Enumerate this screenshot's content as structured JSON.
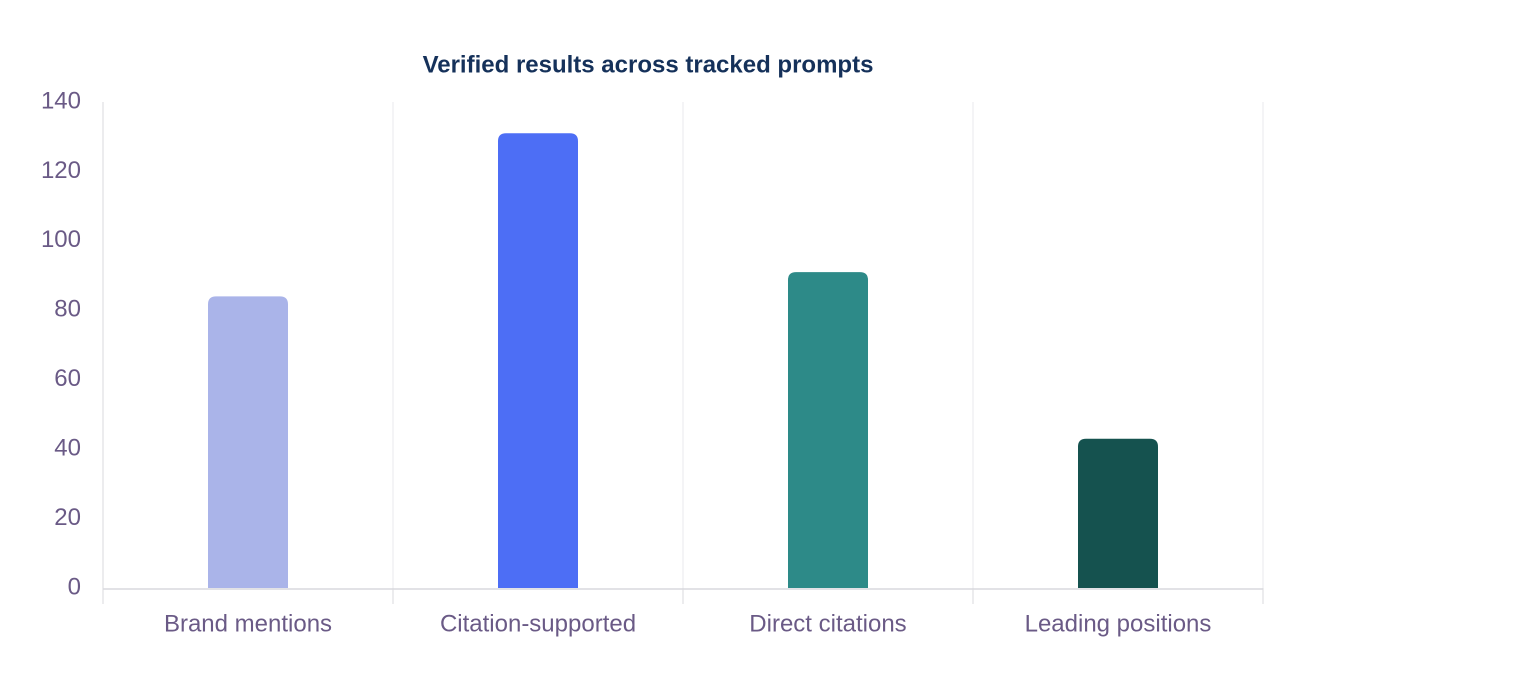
{
  "chart_data": {
    "type": "bar",
    "title": "Verified results across tracked prompts",
    "categories": [
      "Brand mentions",
      "Citation-supported",
      "Direct citations",
      "Leading positions"
    ],
    "values": [
      84,
      131,
      91,
      43
    ],
    "colors": [
      "#aab4e9",
      "#4d6ef5",
      "#2d8a88",
      "#15524f"
    ],
    "ylim": [
      0,
      140
    ],
    "yticks": [
      0,
      20,
      40,
      60,
      80,
      100,
      120,
      140
    ],
    "grid": true
  }
}
